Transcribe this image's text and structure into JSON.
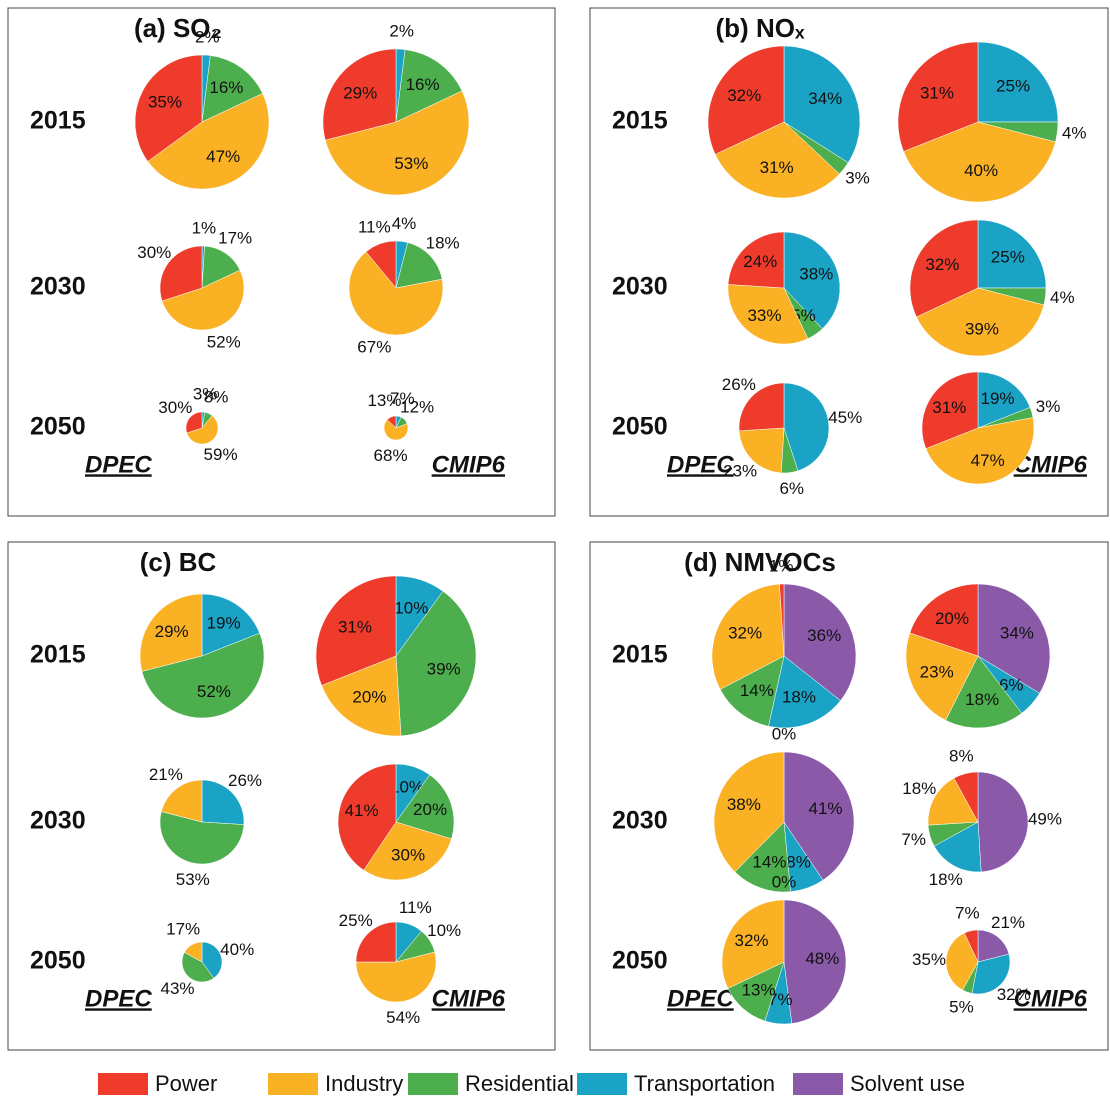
{
  "legend": {
    "categories": [
      "Power",
      "Industry",
      "Residential",
      "Transportation",
      "Solvent use"
    ],
    "colors": [
      "#ef3b2c",
      "#fbb124",
      "#4cae4c",
      "#1ba3c6",
      "#8a5aa9"
    ]
  },
  "chart_data": [
    {
      "type": "pie",
      "title": "(a) SO₂",
      "years": [
        "2015",
        "2030",
        "2050"
      ],
      "sources": [
        "DPEC",
        "CMIP6"
      ],
      "pies": [
        [
          {
            "values": [
              35,
              47,
              16,
              2
            ],
            "value_labels": [
              "35%",
              "47%",
              "16%",
              "2%"
            ]
          },
          {
            "values": [
              29,
              53,
              16,
              2
            ],
            "value_labels": [
              "29%",
              "53%",
              "16%",
              "2%"
            ]
          }
        ],
        [
          {
            "values": [
              30,
              52,
              17,
              1
            ],
            "value_labels": [
              "30%",
              "52%",
              "17%",
              "1%"
            ]
          },
          {
            "values": [
              11,
              67,
              18,
              4
            ],
            "value_labels": [
              "11%",
              "67%",
              "18%",
              "4%"
            ]
          }
        ],
        [
          {
            "values": [
              30,
              59,
              8,
              3
            ],
            "value_labels": [
              "30%",
              "59%",
              "8%",
              "3%"
            ]
          },
          {
            "values": [
              13,
              68,
              12,
              7
            ],
            "value_labels": [
              "13%",
              "68%",
              "12%",
              "7%"
            ]
          }
        ]
      ]
    },
    {
      "type": "pie",
      "title": "(b) NOₓ",
      "years": [
        "2015",
        "2030",
        "2050"
      ],
      "sources": [
        "DPEC",
        "CMIP6"
      ],
      "pies": [
        [
          {
            "values": [
              32,
              31,
              3,
              34
            ],
            "value_labels": [
              "32%",
              "31%",
              "3%",
              "34%"
            ]
          },
          {
            "values": [
              31,
              40,
              4,
              25
            ],
            "value_labels": [
              "31%",
              "40%",
              "4%",
              "25%"
            ]
          }
        ],
        [
          {
            "values": [
              24,
              33,
              5,
              38
            ],
            "value_labels": [
              "24%",
              "33%",
              "5%",
              "38%"
            ]
          },
          {
            "values": [
              32,
              39,
              4,
              25
            ],
            "value_labels": [
              "32%",
              "39%",
              "4%",
              "25%"
            ]
          }
        ],
        [
          {
            "values": [
              26,
              23,
              6,
              45
            ],
            "value_labels": [
              "26%",
              "23%",
              "6%",
              "45%"
            ]
          },
          {
            "values": [
              31,
              47,
              3,
              19
            ],
            "value_labels": [
              "31%",
              "47%",
              "3%",
              "19%"
            ]
          }
        ]
      ]
    },
    {
      "type": "pie",
      "title": "(c) BC",
      "years": [
        "2015",
        "2030",
        "2050"
      ],
      "sources": [
        "DPEC",
        "CMIP6"
      ],
      "pies": [
        [
          {
            "values": [
              null,
              29,
              52,
              19
            ],
            "value_labels": [
              null,
              "29%",
              "52%",
              "19%"
            ]
          },
          {
            "values": [
              31,
              20,
              39,
              10
            ],
            "value_labels": [
              "31%",
              "20%",
              "39%",
              "10%"
            ]
          }
        ],
        [
          {
            "values": [
              null,
              21,
              53,
              26
            ],
            "value_labels": [
              null,
              "21%",
              "53%",
              "26%"
            ]
          },
          {
            "values": [
              41,
              30,
              20,
              10
            ],
            "value_labels": [
              "41%",
              "30%",
              "20%",
              "10%"
            ]
          }
        ],
        [
          {
            "values": [
              null,
              17,
              43,
              40
            ],
            "value_labels": [
              null,
              "17%",
              "43%",
              "40%"
            ]
          },
          {
            "values": [
              25,
              54,
              10,
              11
            ],
            "value_labels": [
              "25%",
              "54%",
              "10%",
              "11%"
            ]
          }
        ]
      ]
    },
    {
      "type": "pie",
      "title": "(d) NMVOCs",
      "years": [
        "2015",
        "2030",
        "2050"
      ],
      "sources": [
        "DPEC",
        "CMIP6"
      ],
      "pies": [
        [
          {
            "values": [
              1,
              32,
              14,
              18,
              36
            ],
            "value_labels": [
              "1%",
              "32%",
              "14%",
              "18%",
              "36%"
            ]
          },
          {
            "values": [
              20,
              23,
              18,
              6,
              34
            ],
            "value_labels": [
              "20%",
              "23%",
              "18%",
              "6%",
              "34%"
            ]
          }
        ],
        [
          {
            "values": [
              0,
              38,
              14,
              8,
              41
            ],
            "value_labels": [
              "0%",
              "38%",
              "14%",
              "8%",
              "41%"
            ]
          },
          {
            "values": [
              8,
              18,
              7,
              18,
              49
            ],
            "value_labels": [
              "8%",
              "18%",
              "7%",
              "18%",
              "49%"
            ]
          }
        ],
        [
          {
            "values": [
              0,
              32,
              13,
              7,
              48
            ],
            "value_labels": [
              "0%",
              "32%",
              "13%",
              "7%",
              "48%"
            ]
          },
          {
            "values": [
              7,
              35,
              5,
              32,
              21
            ],
            "value_labels": [
              "7%",
              "35%",
              "5%",
              "32%",
              "21%"
            ]
          }
        ]
      ]
    }
  ]
}
